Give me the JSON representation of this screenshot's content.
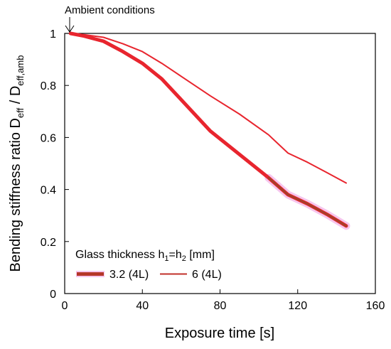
{
  "chart_data": {
    "type": "line",
    "title": "",
    "xlabel": "Exposure time  [s]",
    "ylabel_main": "Bending stiffness ratio D",
    "ylabel_sub1": "eff",
    "ylabel_mid": " / D",
    "ylabel_sub2": "eff,amb",
    "xlim": [
      0,
      160
    ],
    "ylim": [
      0,
      1
    ],
    "xticks": [
      0,
      40,
      80,
      120,
      160
    ],
    "yticks": [
      0,
      0.2,
      0.4,
      0.6,
      0.8,
      1
    ],
    "grid": false,
    "legend": {
      "placement": "bottom-left",
      "title_main": "Glass thickness h",
      "title_sub1": "1",
      "title_mid": "=h",
      "title_sub2": "2",
      "title_unit": "  [mm]"
    },
    "annotation": {
      "text": "Ambient conditions",
      "x": 3,
      "y": 1
    },
    "series": [
      {
        "name": "3.2 (4L)",
        "color": "#e8252e",
        "x": [
          3,
          10,
          20,
          30,
          40,
          50,
          60,
          75,
          90,
          105,
          115,
          125,
          135,
          145
        ],
        "y": [
          1.0,
          0.99,
          0.97,
          0.93,
          0.885,
          0.825,
          0.745,
          0.625,
          0.535,
          0.445,
          0.38,
          0.345,
          0.305,
          0.26
        ]
      },
      {
        "name": "6 (4L)",
        "color": "#e8252e",
        "x": [
          3,
          10,
          20,
          30,
          40,
          50,
          60,
          75,
          90,
          105,
          115,
          125,
          135,
          145
        ],
        "y": [
          1.0,
          0.995,
          0.985,
          0.96,
          0.93,
          0.885,
          0.835,
          0.76,
          0.69,
          0.61,
          0.54,
          0.505,
          0.465,
          0.425
        ]
      }
    ]
  }
}
